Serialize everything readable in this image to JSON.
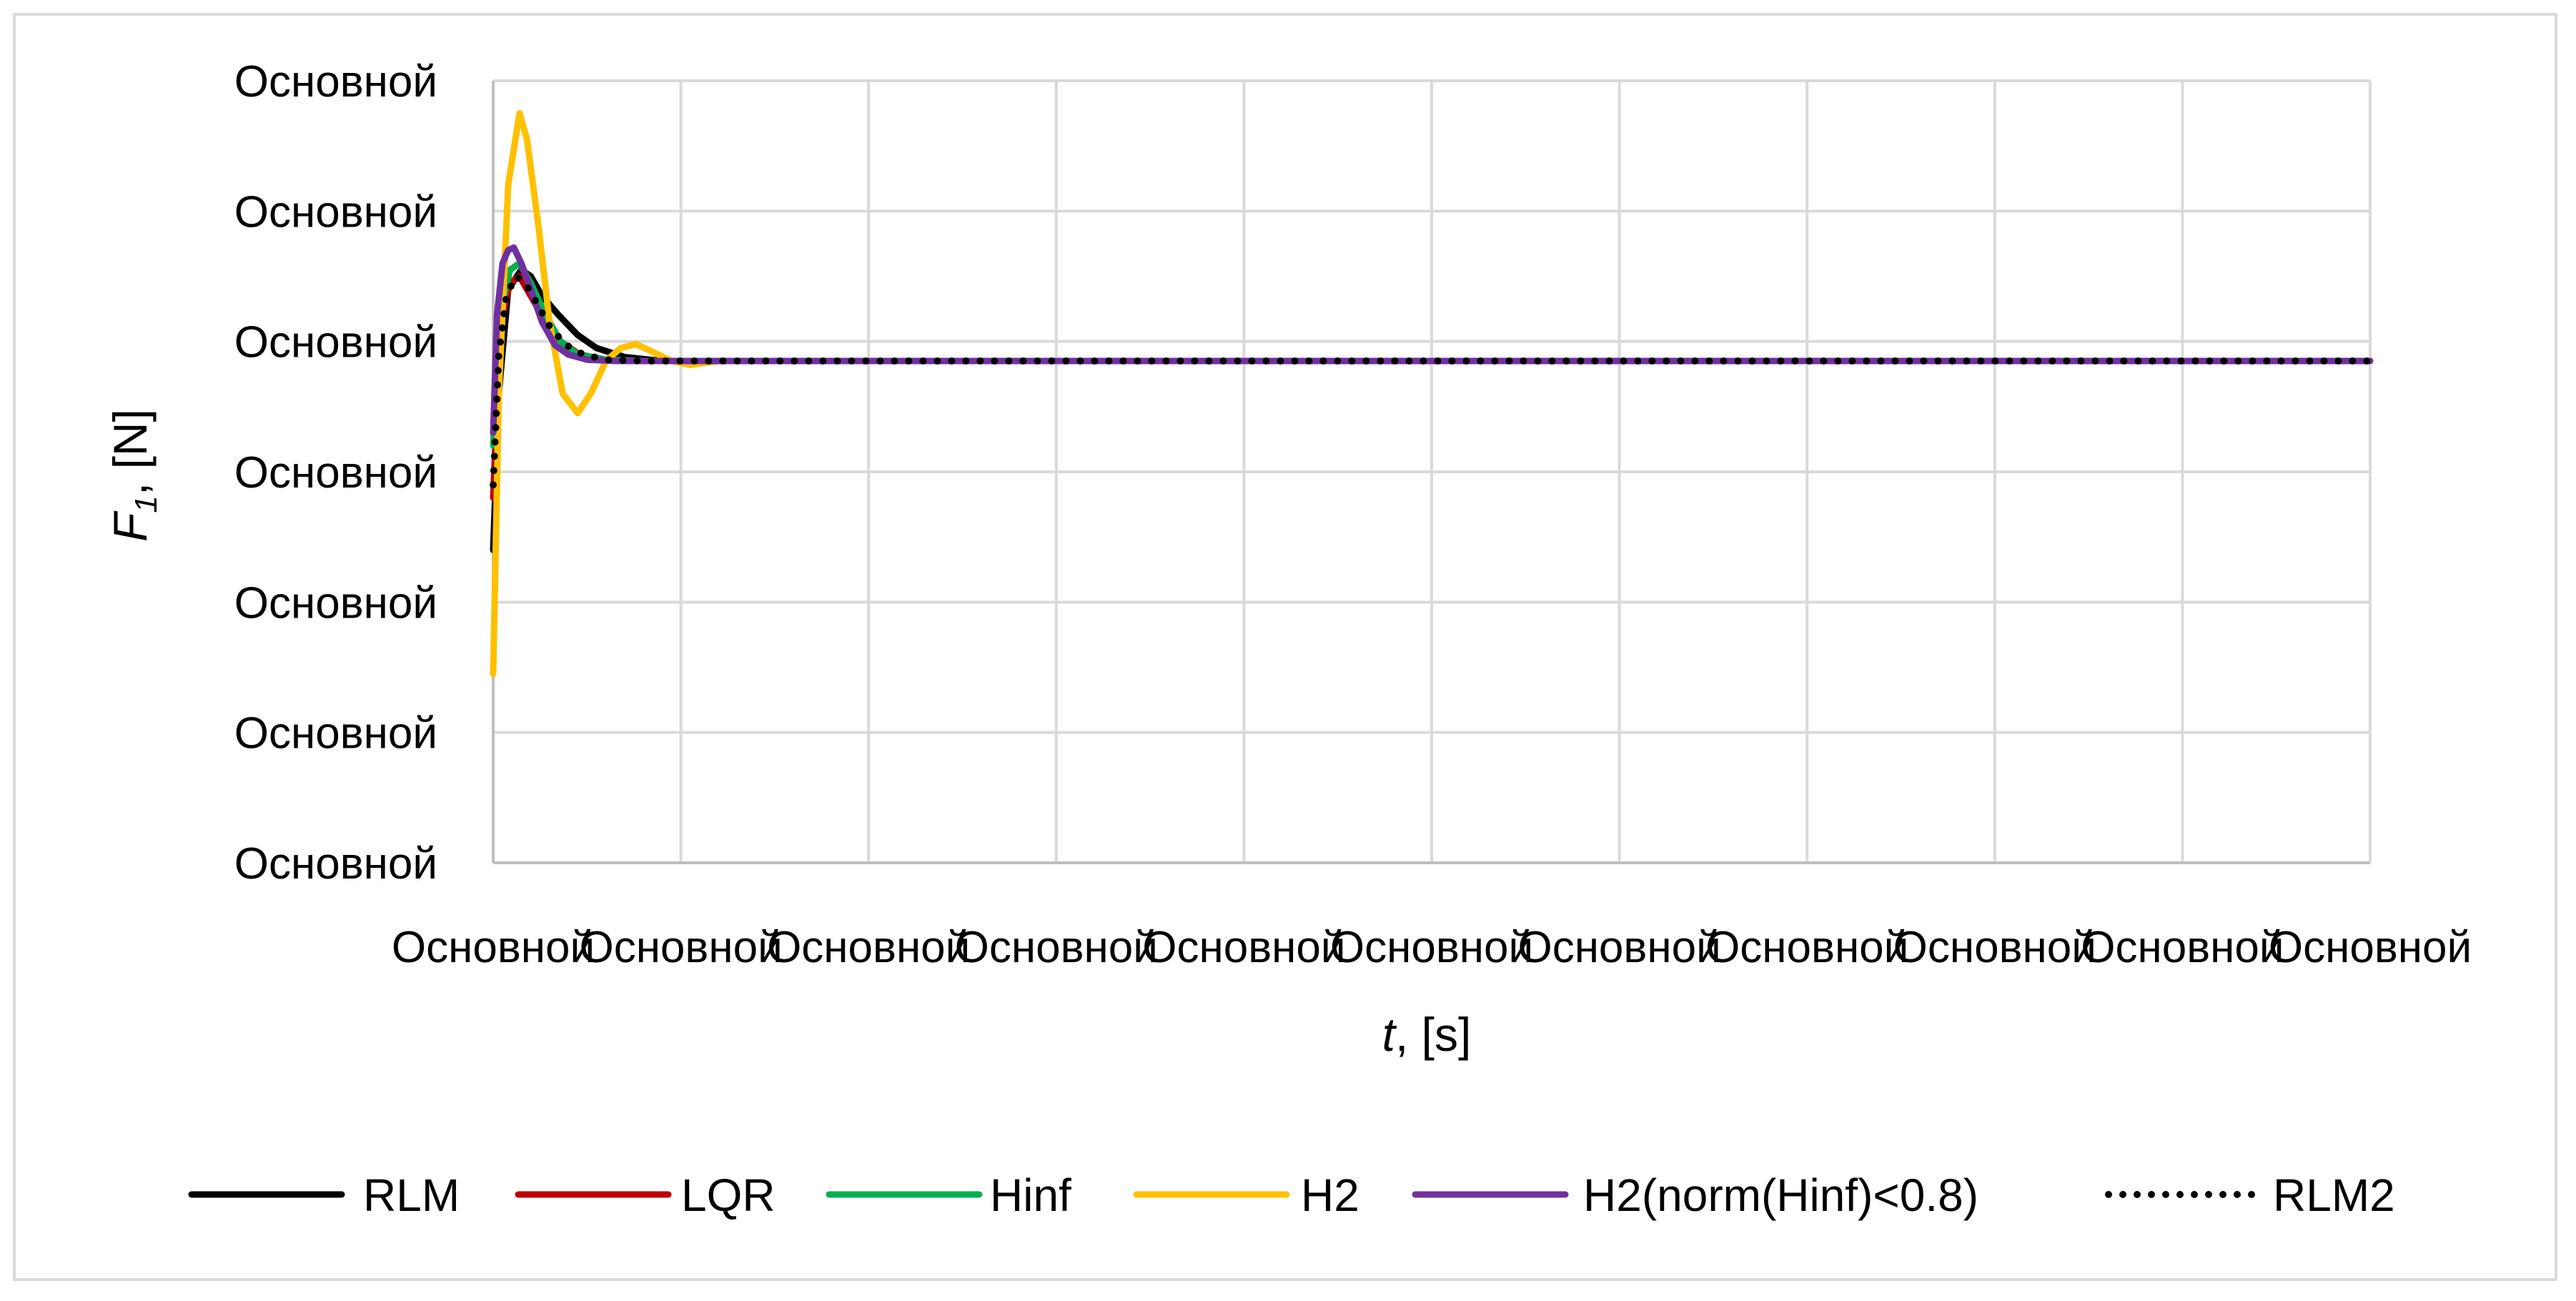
{
  "chart_data": {
    "type": "line",
    "title": "",
    "xlabel": {
      "main": "t",
      "unit": "[s]"
    },
    "ylabel": {
      "main": "F",
      "sub": "1",
      "unit": "[N]"
    },
    "y_tick_labels": [
      "Основной",
      "Основной",
      "Основной",
      "Основной",
      "Основной",
      "Основной",
      "Основной"
    ],
    "x_tick_labels": [
      "Основной",
      "Основной",
      "Основной",
      "Основной",
      "Основной",
      "Основной",
      "Основной",
      "Основной",
      "Основной",
      "Основной",
      "Основной"
    ],
    "xlim": [
      0,
      10
    ],
    "ylim": [
      0,
      6
    ],
    "grid": true,
    "legend": "bottom",
    "series": [
      {
        "name": "RLM",
        "color": "#000000",
        "dash": "solid",
        "x": [
          0,
          0.03,
          0.08,
          0.15,
          0.2,
          0.26,
          0.35,
          0.45,
          0.55,
          0.7,
          0.9,
          10
        ],
        "y": [
          2.4,
          3.6,
          4.4,
          4.55,
          4.5,
          4.35,
          4.2,
          4.05,
          3.95,
          3.88,
          3.85,
          3.85
        ]
      },
      {
        "name": "LQR",
        "color": "#c00000",
        "dash": "solid",
        "x": [
          0,
          0.02,
          0.05,
          0.09,
          0.14,
          0.2,
          0.28,
          0.36,
          0.46,
          0.6,
          0.8,
          10
        ],
        "y": [
          2.8,
          3.5,
          4.2,
          4.45,
          4.5,
          4.35,
          4.15,
          4.0,
          3.9,
          3.86,
          3.85,
          3.85
        ]
      },
      {
        "name": "Hinf",
        "color": "#00b050",
        "dash": "solid",
        "x": [
          0,
          0.02,
          0.05,
          0.09,
          0.14,
          0.2,
          0.28,
          0.36,
          0.45,
          0.6,
          0.8,
          10
        ],
        "y": [
          3.2,
          3.8,
          4.3,
          4.55,
          4.6,
          4.45,
          4.2,
          4.0,
          3.9,
          3.86,
          3.85,
          3.85
        ]
      },
      {
        "name": "H2",
        "color": "#ffc000",
        "dash": "solid",
        "x": [
          0,
          0.03,
          0.08,
          0.14,
          0.18,
          0.24,
          0.3,
          0.37,
          0.45,
          0.52,
          0.6,
          0.68,
          0.76,
          0.85,
          0.95,
          1.05,
          1.2,
          10
        ],
        "y": [
          1.45,
          3.6,
          5.2,
          5.75,
          5.55,
          4.9,
          4.15,
          3.6,
          3.45,
          3.6,
          3.85,
          3.95,
          3.98,
          3.92,
          3.85,
          3.82,
          3.85,
          3.85
        ]
      },
      {
        "name": "H2(norm(Hinf)<0.8)",
        "color": "#7030a0",
        "dash": "solid",
        "x": [
          0,
          0.02,
          0.05,
          0.08,
          0.11,
          0.15,
          0.2,
          0.26,
          0.33,
          0.4,
          0.5,
          0.65,
          0.8,
          10
        ],
        "y": [
          3.3,
          4.2,
          4.6,
          4.7,
          4.72,
          4.6,
          4.4,
          4.15,
          3.97,
          3.9,
          3.86,
          3.85,
          3.85,
          3.85
        ]
      },
      {
        "name": "RLM2",
        "color": "#000000",
        "dash": "dotted",
        "x": [
          0,
          0.03,
          0.07,
          0.12,
          0.17,
          0.23,
          0.3,
          0.38,
          0.48,
          0.6,
          0.8,
          10
        ],
        "y": [
          2.9,
          3.9,
          4.35,
          4.5,
          4.45,
          4.3,
          4.12,
          3.98,
          3.9,
          3.86,
          3.85,
          3.85
        ]
      }
    ]
  }
}
